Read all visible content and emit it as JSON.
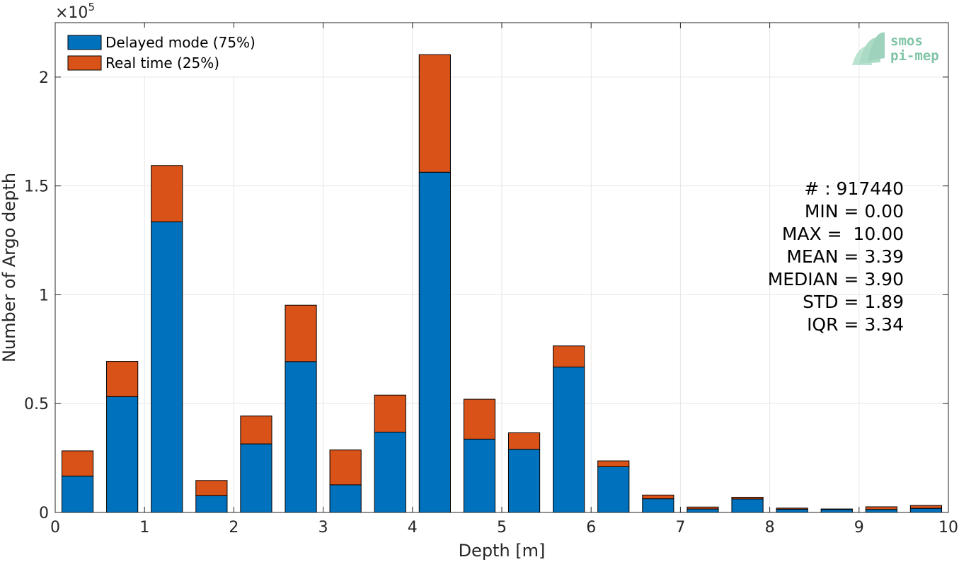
{
  "chart_data": {
    "type": "bar",
    "stacked": true,
    "xlabel": "Depth [m]",
    "ylabel": "Number of Argo depth",
    "exponent_label": "×10",
    "exponent_power": "5",
    "xlim": [
      0,
      10
    ],
    "ylim": [
      0,
      2.25
    ],
    "y_scale": 100000,
    "grid": true,
    "bar_width": 0.35,
    "x_ticks": [
      "0",
      "1",
      "2",
      "3",
      "4",
      "5",
      "6",
      "7",
      "8",
      "9",
      "10"
    ],
    "y_ticks": [
      "0",
      "0.5",
      "1",
      "1.5",
      "2"
    ],
    "x_tick_values": [
      0,
      1,
      2,
      3,
      4,
      5,
      6,
      7,
      8,
      9,
      10
    ],
    "y_tick_values": [
      0,
      0.5,
      1,
      1.5,
      2
    ],
    "x": [
      0.25,
      0.75,
      1.25,
      1.75,
      2.25,
      2.75,
      3.25,
      3.75,
      4.25,
      4.75,
      5.25,
      5.75,
      6.25,
      6.75,
      7.25,
      7.75,
      8.25,
      8.75,
      9.25,
      9.75
    ],
    "series": [
      {
        "name": "Delayed mode (75%)",
        "color": "#0072bd",
        "values": [
          0.167,
          0.532,
          1.335,
          0.077,
          0.315,
          0.693,
          0.127,
          0.369,
          1.563,
          0.337,
          0.29,
          0.668,
          0.21,
          0.063,
          0.016,
          0.062,
          0.015,
          0.014,
          0.014,
          0.019
        ]
      },
      {
        "name": "Real time (25%)",
        "color": "#d95319",
        "values": [
          0.116,
          0.162,
          0.259,
          0.07,
          0.128,
          0.259,
          0.16,
          0.17,
          0.54,
          0.183,
          0.076,
          0.097,
          0.027,
          0.017,
          0.009,
          0.008,
          0.005,
          0.002,
          0.012,
          0.013
        ]
      }
    ],
    "legend": {
      "placement": "top-left",
      "entries": [
        "Delayed mode (75%)",
        "Real time (25%)"
      ]
    },
    "annotations": [
      "# : 917440",
      "MIN = 0.00",
      "MAX =  10.00",
      "MEAN = 3.39",
      "MEDIAN = 3.90",
      "STD = 1.89",
      "IQR = 3.34"
    ]
  },
  "logo": {
    "line1": "smos",
    "line2": "pi-mep",
    "color": "#7fc4a6"
  }
}
